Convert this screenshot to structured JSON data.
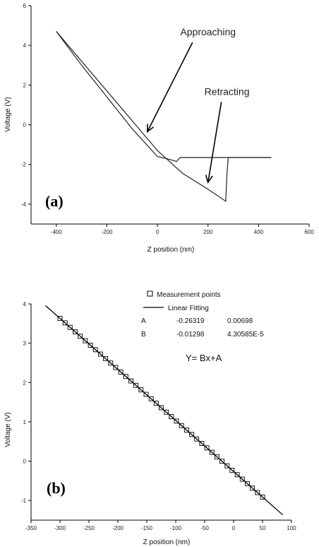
{
  "chart_data": [
    {
      "type": "line",
      "panel_label": "(a)",
      "xlabel": "Z position (nm)",
      "ylabel": "Voltage (V)",
      "xlim": [
        -500,
        600
      ],
      "ylim": [
        -5,
        6
      ],
      "x_ticks": [
        -400,
        -200,
        0,
        200,
        400,
        600
      ],
      "y_ticks": [
        -4,
        -2,
        0,
        2,
        4,
        6
      ],
      "series": [
        {
          "x": [
            -400,
            -300,
            -200,
            -100,
            0,
            50,
            75,
            90,
            120,
            200,
            280,
            350,
            450
          ],
          "y": [
            4.7,
            3.0,
            1.4,
            -0.2,
            -1.6,
            -1.75,
            -1.85,
            -1.65,
            -1.65,
            -1.65,
            -1.65,
            -1.65,
            -1.65
          ]
        },
        {
          "x": [
            -400,
            -300,
            -200,
            -100,
            0,
            100,
            200,
            270,
            275,
            280,
            350,
            450
          ],
          "y": [
            4.7,
            3.2,
            1.7,
            0.2,
            -1.3,
            -2.45,
            -3.25,
            -3.85,
            -2.5,
            -1.65,
            -1.65,
            -1.65
          ]
        }
      ],
      "annotations": [
        {
          "text": "Approaching",
          "x": -40,
          "y": -0.35,
          "text_x": 200,
          "text_y": 4.5
        },
        {
          "text": "Retracting",
          "x": 200,
          "y": -2.9,
          "text_x": 275,
          "text_y": 1.5
        }
      ]
    },
    {
      "type": "scatter",
      "panel_label": "(b)",
      "xlabel": "Z position (nm)",
      "ylabel": "Voltage (V)",
      "xlim": [
        -350,
        100
      ],
      "ylim": [
        -1.5,
        4
      ],
      "x_ticks": [
        -350,
        -300,
        -250,
        -200,
        -150,
        -100,
        -50,
        0,
        50,
        100
      ],
      "y_ticks": [
        -1,
        0,
        1,
        2,
        3,
        4
      ],
      "series": [
        {
          "name": "Measurement points",
          "marker": "open-square",
          "x_range": [
            -300,
            50
          ],
          "x_step": 8.75
        },
        {
          "name": "Linear Fitting",
          "line": true,
          "x": [
            -325,
            85
          ]
        }
      ],
      "fit": {
        "A": -0.26319,
        "B": -0.01298
      },
      "fit_table": [
        {
          "param": "A",
          "value": "-0.26319",
          "error": "0.00698"
        },
        {
          "param": "B",
          "value": "-0.01298",
          "error": "4.30585E-5"
        }
      ],
      "equation": "Y= Bx+A"
    }
  ]
}
